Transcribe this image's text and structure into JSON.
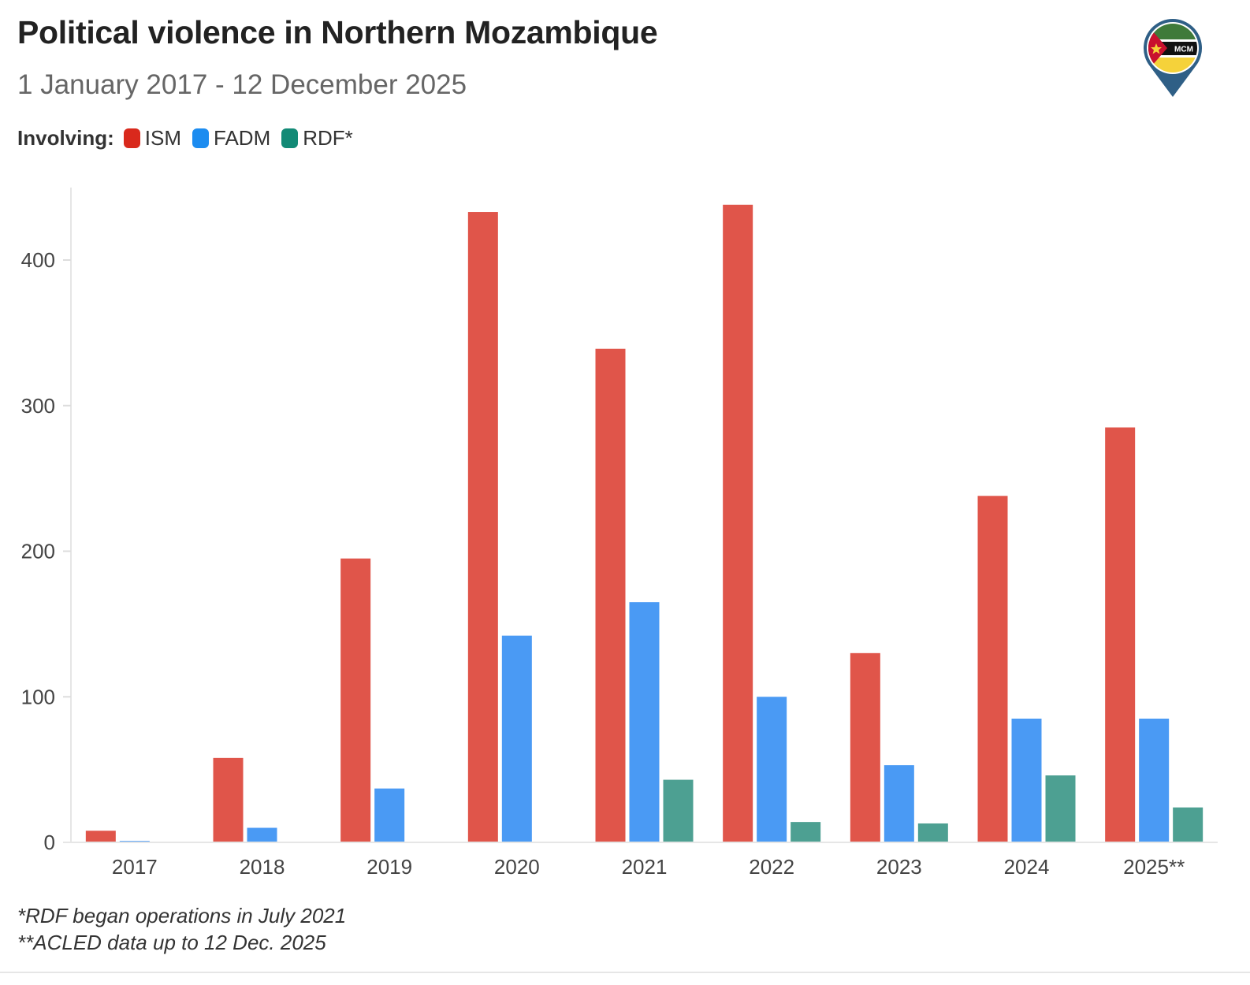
{
  "header": {
    "title": "Political violence in Northern Mozambique",
    "subtitle": "1 January 2017 - 12 December 2025"
  },
  "legend": {
    "title": "Involving:",
    "items": [
      {
        "label": "ISM",
        "color": "#d9291c"
      },
      {
        "label": "FADM",
        "color": "#1c8cf0"
      },
      {
        "label": "RDF*",
        "color": "#128a76"
      }
    ]
  },
  "logo": {
    "text": "MCM"
  },
  "footnotes": [
    "*RDF began operations in July 2021",
    "**ACLED data up to 12 Dec. 2025"
  ],
  "chart_data": {
    "type": "bar",
    "title": "Political violence in Northern Mozambique",
    "xlabel": "",
    "ylabel": "",
    "categories": [
      "2017",
      "2018",
      "2019",
      "2020",
      "2021",
      "2022",
      "2023",
      "2024",
      "2025**"
    ],
    "series": [
      {
        "name": "ISM",
        "color": "#e0554a",
        "values": [
          8,
          58,
          195,
          433,
          339,
          438,
          130,
          238,
          285
        ]
      },
      {
        "name": "FADM",
        "color": "#4a9af4",
        "values": [
          1,
          10,
          37,
          142,
          165,
          100,
          53,
          85,
          85
        ]
      },
      {
        "name": "RDF*",
        "color": "#4da092",
        "values": [
          0,
          0,
          0,
          0,
          43,
          14,
          13,
          46,
          24
        ]
      }
    ],
    "ylim": [
      0,
      450
    ],
    "yticks": [
      0,
      100,
      200,
      300,
      400
    ],
    "grid": false,
    "legend_position": "top-left"
  }
}
